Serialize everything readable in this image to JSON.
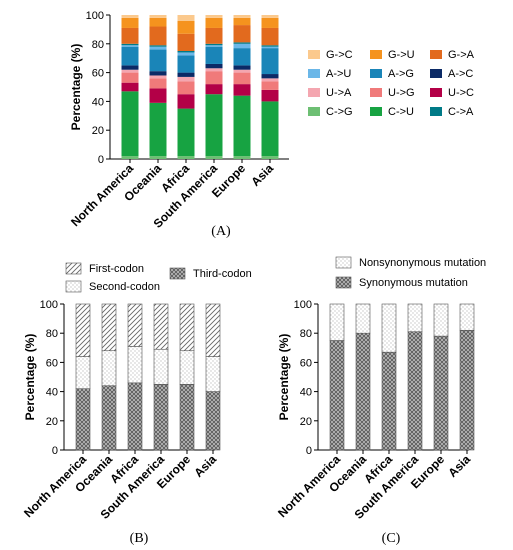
{
  "chart_data": [
    {
      "type": "bar",
      "stacked": true,
      "panel_label": "(A)",
      "ylabel": "Percentage (%)",
      "ylim": [
        0,
        100
      ],
      "yticks": [
        0,
        20,
        40,
        60,
        80,
        100
      ],
      "categories": [
        "North America",
        "Oceania",
        "Africa",
        "South America",
        "Europe",
        "Asia"
      ],
      "legend_position": "right",
      "series": [
        {
          "name": "C->G",
          "color": "#6dbf73",
          "values": [
            2,
            2,
            2,
            2,
            2,
            2
          ]
        },
        {
          "name": "C->U",
          "color": "#17a342",
          "values": [
            45,
            37,
            33,
            43,
            42,
            38
          ]
        },
        {
          "name": "U->C",
          "color": "#b30047",
          "values": [
            6,
            10,
            10,
            7,
            8,
            8
          ]
        },
        {
          "name": "U->G",
          "color": "#f07a7a",
          "values": [
            7,
            7,
            9,
            9,
            8,
            6
          ]
        },
        {
          "name": "U->A",
          "color": "#f4a6b0",
          "values": [
            2,
            2,
            3,
            2,
            2,
            2
          ]
        },
        {
          "name": "A->C",
          "color": "#0b2a66",
          "values": [
            3,
            3,
            3,
            3,
            3,
            3
          ]
        },
        {
          "name": "A->G",
          "color": "#1a85b8",
          "values": [
            13,
            15,
            12,
            12,
            12,
            18
          ]
        },
        {
          "name": "A->U",
          "color": "#6bb7e8",
          "values": [
            1,
            2,
            2,
            1,
            3,
            1
          ]
        },
        {
          "name": "C->A",
          "color": "#007a87",
          "values": [
            1,
            1,
            1,
            1,
            1,
            1
          ]
        },
        {
          "name": "G->A",
          "color": "#e26a1e",
          "values": [
            11,
            13,
            12,
            11,
            12,
            12
          ]
        },
        {
          "name": "G->U",
          "color": "#f5931e",
          "values": [
            7,
            6,
            9,
            7,
            5,
            7
          ]
        },
        {
          "name": "G->C",
          "color": "#fbc98d",
          "values": [
            2,
            2,
            4,
            2,
            2,
            2
          ]
        }
      ],
      "legend_order": [
        [
          "G->C",
          "G->U",
          "G->A"
        ],
        [
          "A->U",
          "A->G",
          "A->C"
        ],
        [
          "U->A",
          "U->G",
          "U->C"
        ],
        [
          "C->G",
          "C->U",
          "C->A"
        ]
      ]
    },
    {
      "type": "bar",
      "stacked": true,
      "panel_label": "(B)",
      "ylabel": "Percentage (%)",
      "ylim": [
        0,
        100
      ],
      "yticks": [
        0,
        20,
        40,
        60,
        80,
        100
      ],
      "categories": [
        "North America",
        "Oceania",
        "Africa",
        "South America",
        "Europe",
        "Asia"
      ],
      "legend_position": "top",
      "series": [
        {
          "name": "Third-codon",
          "pattern": "grid",
          "values": [
            42,
            44,
            46,
            45,
            45,
            40
          ]
        },
        {
          "name": "Second-codon",
          "pattern": "dots",
          "values": [
            22,
            24,
            25,
            24,
            23,
            24
          ]
        },
        {
          "name": "First-codon",
          "pattern": "hatch",
          "values": [
            36,
            32,
            29,
            31,
            32,
            36
          ]
        }
      ]
    },
    {
      "type": "bar",
      "stacked": true,
      "panel_label": "(C)",
      "ylabel": "Percentage (%)",
      "ylim": [
        0,
        100
      ],
      "yticks": [
        0,
        20,
        40,
        60,
        80,
        100
      ],
      "categories": [
        "North America",
        "Oceania",
        "Africa",
        "South America",
        "Europe",
        "Asia"
      ],
      "legend_position": "top",
      "series": [
        {
          "name": "Synonymous mutation",
          "pattern": "grid",
          "values": [
            75,
            80,
            67,
            81,
            78,
            82
          ]
        },
        {
          "name": "Nonsynonymous mutation",
          "pattern": "dots",
          "values": [
            25,
            20,
            33,
            19,
            22,
            18
          ]
        }
      ]
    }
  ]
}
